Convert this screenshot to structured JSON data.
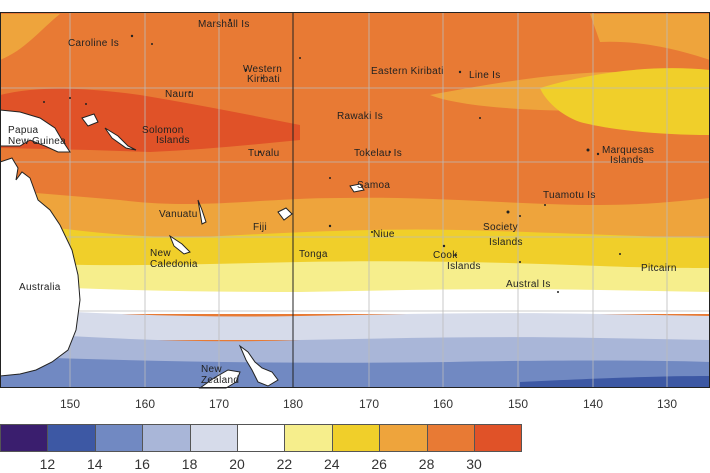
{
  "map": {
    "labels": [
      {
        "id": "marshall-islands",
        "text": "Marshall Is"
      },
      {
        "id": "caroline-islands",
        "text": "Caroline Is"
      },
      {
        "id": "western-kiribati-1",
        "text": "Western"
      },
      {
        "id": "western-kiribati-2",
        "text": "Kiribati"
      },
      {
        "id": "eastern-kiribati",
        "text": "Eastern Kiribati"
      },
      {
        "id": "line-islands",
        "text": "Line Is"
      },
      {
        "id": "nauru",
        "text": "Nauru"
      },
      {
        "id": "papua-1",
        "text": "Papua"
      },
      {
        "id": "papua-2",
        "text": "New Guinea"
      },
      {
        "id": "solomon-1",
        "text": "Solomon"
      },
      {
        "id": "solomon-2",
        "text": "Islands"
      },
      {
        "id": "tuvalu",
        "text": "Tuvalu"
      },
      {
        "id": "rawaki",
        "text": "Rawaki Is"
      },
      {
        "id": "tokelau",
        "text": "Tokelau Is"
      },
      {
        "id": "marquesas-1",
        "text": "Marquesas"
      },
      {
        "id": "marquesas-2",
        "text": "Islands"
      },
      {
        "id": "samoa",
        "text": "Samoa"
      },
      {
        "id": "tuamotu",
        "text": "Tuamotu Is"
      },
      {
        "id": "vanuatu",
        "text": "Vanuatu"
      },
      {
        "id": "fiji",
        "text": "Fiji"
      },
      {
        "id": "niue",
        "text": "Niue"
      },
      {
        "id": "society-1",
        "text": "Society"
      },
      {
        "id": "society-2",
        "text": "Islands"
      },
      {
        "id": "new-caledonia-1",
        "text": "New"
      },
      {
        "id": "new-caledonia-2",
        "text": "Caledonia"
      },
      {
        "id": "tonga",
        "text": "Tonga"
      },
      {
        "id": "cook-1",
        "text": "Cook"
      },
      {
        "id": "cook-2",
        "text": "Islands"
      },
      {
        "id": "pitcairn",
        "text": "Pitcairn"
      },
      {
        "id": "australia",
        "text": "Australia"
      },
      {
        "id": "austral",
        "text": "Austral Is"
      },
      {
        "id": "new-zealand-1",
        "text": "New"
      },
      {
        "id": "new-zealand-2",
        "text": "Zealand"
      }
    ],
    "longitude_ticks": [
      "150",
      "160",
      "170",
      "180",
      "170",
      "160",
      "150",
      "140",
      "130"
    ]
  },
  "legend": {
    "colors": [
      "#3a1e6e",
      "#3d58a4",
      "#7189c2",
      "#a9b6d8",
      "#d6dbea",
      "#ffffff",
      "#f6ee8c",
      "#f0cf2a",
      "#eea43c",
      "#e87a34",
      "#e05228"
    ],
    "ticks": [
      "12",
      "14",
      "16",
      "18",
      "20",
      "22",
      "24",
      "26",
      "28",
      "30"
    ]
  }
}
